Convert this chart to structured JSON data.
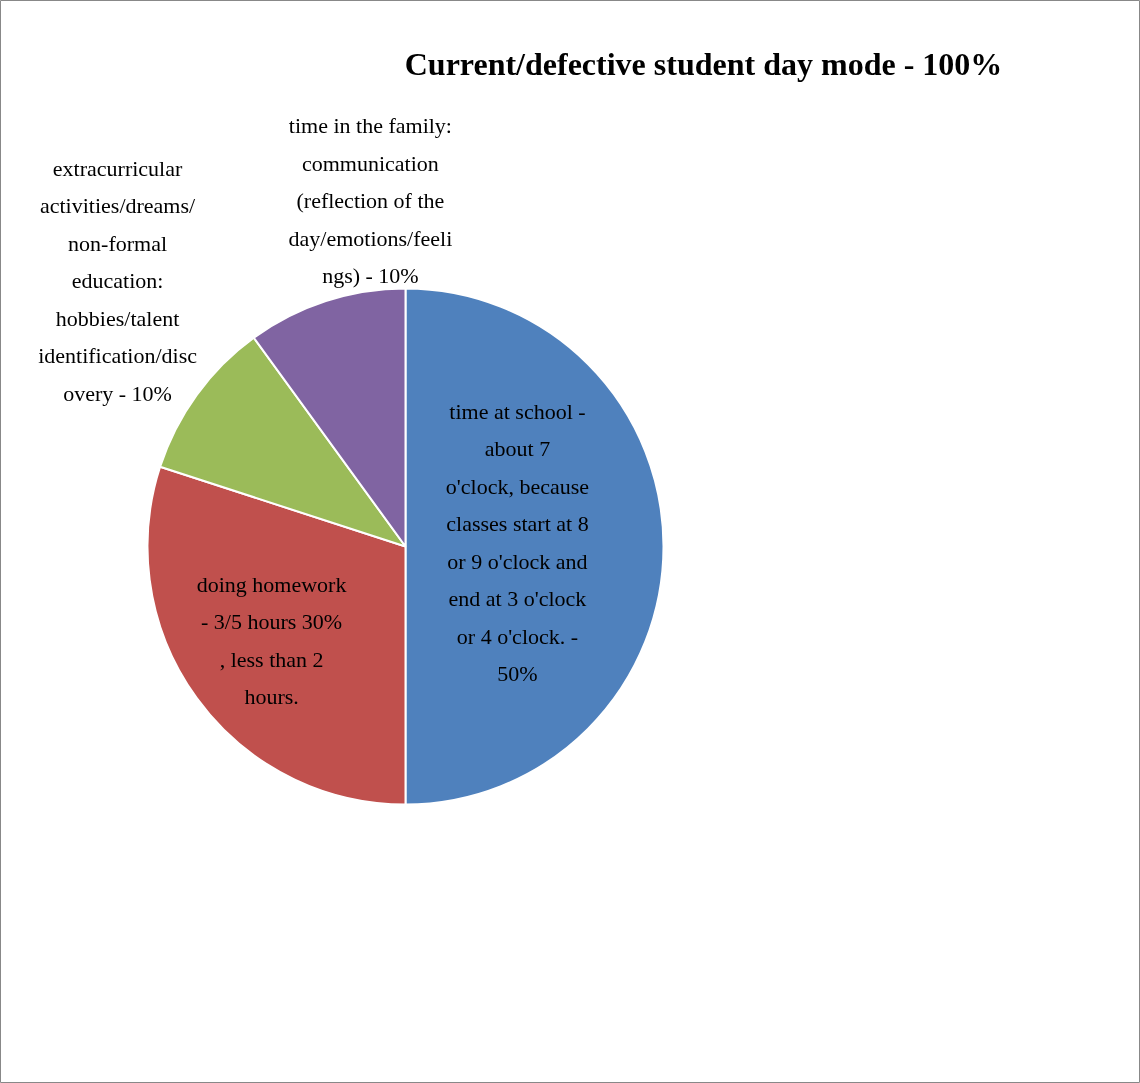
{
  "chart_data": {
    "type": "pie",
    "title": "Current/defective student day mode - 100%",
    "categories": [
      "time at school -\nabout 7\no'clock, because\nclasses start at 8\nor 9 o'clock and\nend at 3 o'clock\nor 4 o'clock. -\n50%",
      "doing homework\n- 3/5 hours 30%\n, less than 2\nhours.",
      "extracurricular\nactivities/dreams/\nnon-formal\neducation:\nhobbies/talent\nidentification/disc\novery - 10%",
      "time in the family:\ncommunication\n(reflection of the\nday/emotions/feeli\nngs) - 10%"
    ],
    "values": [
      50,
      30,
      10,
      10
    ],
    "colors": [
      "#4f81bd",
      "#c0504d",
      "#9bbb59",
      "#8064a2"
    ]
  }
}
